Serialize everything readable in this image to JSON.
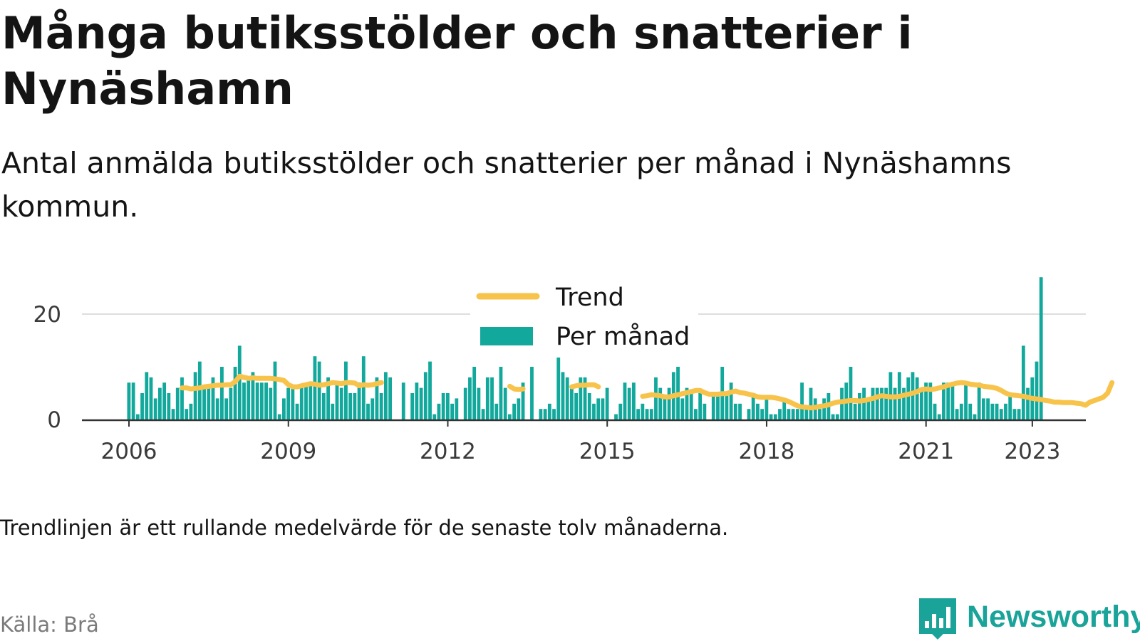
{
  "title": "Många butiksstölder och snatterier i Nynäshamn",
  "subtitle": "Antal anmälda butiksstölder och snatterier per månad i Nynäshamns kommun.",
  "note": "Trendlinjen är ett rullande medelvärde för de senaste tolv månaderna.",
  "source": "Källa: Brå",
  "brand": "Newsworthy",
  "colors": {
    "bar": "#12a89c",
    "trend": "#f8c34a",
    "grid": "#dedede",
    "axis": "#333333",
    "brand": "#1aa399"
  },
  "chart_data": {
    "type": "bar",
    "x_start": "2006-01",
    "frequency": "monthly",
    "x_ticks": [
      "2006",
      "2009",
      "2012",
      "2015",
      "2018",
      "2021",
      "2023"
    ],
    "y_ticks": [
      0,
      20
    ],
    "ylim": [
      0,
      27
    ],
    "grid": true,
    "legend_position": "top-center",
    "series": [
      {
        "name": "Per månad",
        "kind": "bar",
        "values": [
          7,
          7,
          1,
          5,
          9,
          8,
          4,
          6,
          7,
          5,
          2,
          6,
          8,
          2,
          3,
          9,
          11,
          6,
          6,
          8,
          4,
          10,
          4,
          6,
          10,
          14,
          7,
          8,
          9,
          7,
          7,
          7,
          6,
          11,
          1,
          4,
          6,
          6,
          3,
          6,
          7,
          7,
          12,
          11,
          5,
          8,
          3,
          7,
          6,
          11,
          5,
          5,
          7,
          12,
          3,
          4,
          8,
          5,
          9,
          8,
          null,
          null,
          7,
          null,
          5,
          7,
          6,
          9,
          11,
          1,
          3,
          5,
          5,
          3,
          4,
          null,
          6,
          8,
          10,
          6,
          2,
          8,
          8,
          3,
          10,
          6,
          1,
          3,
          4,
          7,
          null,
          10,
          null,
          2,
          2,
          3,
          2,
          12,
          9,
          8,
          6,
          5,
          8,
          8,
          5,
          3,
          4,
          4,
          6,
          null,
          1,
          3,
          7,
          6,
          7,
          2,
          3,
          2,
          2,
          8,
          6,
          4,
          6,
          9,
          10,
          4,
          6,
          5,
          2,
          5,
          3,
          null,
          5,
          5,
          10,
          5,
          7,
          3,
          3,
          null,
          2,
          5,
          3,
          2,
          4,
          1,
          1,
          2,
          4,
          2,
          2,
          2,
          7,
          2,
          6,
          4,
          2,
          4,
          5,
          1,
          1,
          6,
          7,
          10,
          3,
          5,
          6,
          4,
          6,
          6,
          6,
          6,
          9,
          6,
          9,
          6,
          8,
          9,
          8,
          6,
          7,
          7,
          3,
          1,
          7,
          7,
          7,
          2,
          3,
          7,
          3,
          1,
          7,
          4,
          4,
          3,
          3,
          2,
          3,
          5,
          2,
          2,
          14,
          6,
          8,
          11,
          27
        ]
      },
      {
        "name": "Trend",
        "kind": "line",
        "values": [
          null,
          null,
          null,
          null,
          null,
          null,
          null,
          null,
          null,
          null,
          null,
          null,
          6.0,
          6.0,
          5.8,
          5.9,
          6.0,
          6.2,
          6.3,
          6.4,
          6.5,
          6.5,
          6.6,
          6.6,
          7.2,
          8.2,
          8.0,
          7.8,
          7.9,
          7.8,
          7.8,
          7.8,
          7.8,
          7.7,
          7.6,
          7.4,
          6.6,
          6.2,
          6.2,
          6.4,
          6.6,
          6.8,
          6.7,
          6.5,
          6.6,
          6.8,
          7.0,
          6.9,
          6.8,
          7.0,
          7.0,
          6.9,
          6.4,
          6.6,
          6.5,
          6.6,
          6.8,
          7.0,
          null,
          null,
          null,
          null,
          null,
          null,
          null,
          null,
          null,
          null,
          null,
          null,
          null,
          null,
          null,
          null,
          null,
          null,
          null,
          null,
          null,
          null,
          null,
          null,
          null,
          null,
          null,
          null,
          null,
          null,
          null,
          null,
          null,
          null,
          null,
          null,
          null,
          null,
          null,
          null,
          null,
          null,
          null,
          null,
          null,
          null,
          null,
          null,
          null,
          null,
          null,
          null,
          null,
          null,
          null,
          null,
          null,
          null,
          null,
          null,
          null,
          null,
          null,
          null,
          null,
          null,
          null,
          null,
          null,
          null,
          null,
          null,
          null,
          null,
          null,
          null,
          null,
          null,
          null,
          null,
          null,
          null,
          null,
          null,
          null,
          null,
          null,
          null,
          null,
          null,
          null,
          null,
          null,
          null,
          null,
          null,
          null,
          null,
          null,
          null,
          null,
          null,
          null,
          null,
          null,
          null,
          null,
          null,
          null,
          null,
          null,
          null,
          null,
          null,
          null,
          null,
          null,
          null,
          null,
          null,
          null,
          null,
          null,
          null,
          null,
          null,
          null,
          null,
          null,
          null,
          null,
          null,
          null,
          null,
          null,
          null,
          null,
          null,
          null,
          null,
          null,
          null,
          null,
          null,
          null,
          null,
          null,
          null,
          null
        ],
        "segments": [
          {
            "start": "2007-01",
            "values": [
              6.0,
              6.0,
              5.8,
              5.9,
              6.0,
              6.2,
              6.3,
              6.4,
              6.5,
              6.5,
              6.6,
              6.6,
              7.2,
              8.2,
              8.0,
              7.8,
              7.9,
              7.8,
              7.8,
              7.8,
              7.8,
              7.7,
              7.6,
              7.4,
              6.6,
              6.2,
              6.2,
              6.4,
              6.6,
              6.8,
              6.7,
              6.5,
              6.6,
              6.8,
              7.0,
              6.9,
              6.8,
              7.0,
              7.0,
              6.9,
              6.4,
              6.6,
              6.5,
              6.6,
              6.8,
              7.0
            ]
          },
          {
            "start": "2013-03",
            "values": [
              6.3,
              5.8,
              5.7,
              5.8
            ]
          },
          {
            "start": "2014-05",
            "values": [
              6.2,
              6.4,
              6.5,
              6.5,
              6.6,
              6.6,
              6.2
            ]
          },
          {
            "start": "2015-09",
            "values": [
              4.4,
              4.5,
              4.7,
              4.6,
              4.5,
              4.3,
              4.3,
              4.5,
              4.7,
              4.9,
              5.1,
              5.3,
              5.5,
              5.5,
              5.1,
              4.8,
              4.8,
              4.8,
              4.9,
              4.9,
              5.2,
              5.4,
              5.1,
              5.0,
              4.8,
              4.6,
              4.3,
              4.2,
              4.2,
              4.2,
              4.1,
              3.9,
              3.7,
              3.4,
              3.0,
              2.6,
              2.4,
              2.3,
              2.2,
              2.3,
              2.5,
              2.6,
              2.8,
              3.1,
              3.3,
              3.4,
              3.5,
              3.6,
              3.6,
              3.5,
              3.6,
              3.8,
              4.0,
              4.3,
              4.5,
              4.4,
              4.3,
              4.3,
              4.4,
              4.6,
              4.8,
              5.0,
              5.3,
              5.7,
              5.8,
              5.7,
              5.8,
              6.0,
              6.2,
              6.5,
              6.7,
              6.9,
              7.0,
              6.9,
              6.7,
              6.6,
              6.5,
              6.3,
              6.2,
              6.1,
              5.9,
              5.5,
              5.0,
              4.7,
              4.6,
              4.5,
              4.4,
              4.2,
              4.0,
              3.9,
              3.8,
              3.6,
              3.5,
              3.3,
              3.3,
              3.2,
              3.2,
              3.2,
              3.1,
              3.0,
              2.7,
              3.3,
              3.6,
              3.9,
              4.2,
              5.0,
              7.0
            ]
          }
        ]
      }
    ]
  }
}
